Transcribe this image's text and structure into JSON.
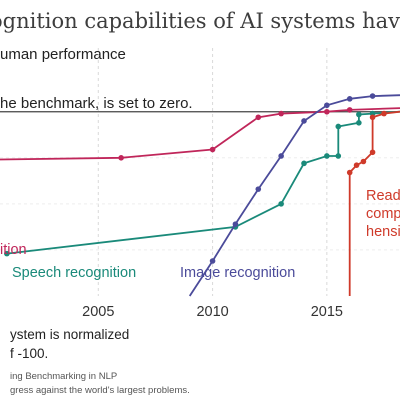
{
  "title": "ognition capabilities of AI systems have i",
  "notes": {
    "human": "uman performance",
    "zero": "he benchmark, is set to zero."
  },
  "footnote": {
    "line1": "ystem is normalized",
    "line2": "f -100."
  },
  "source": {
    "line1": "ing Benchmarking in NLP",
    "line2": "gress against the world's largest problems."
  },
  "colors": {
    "handwriting": "#c0265a",
    "speech": "#1a8a7a",
    "image": "#4b4b9a",
    "reading": "#cf3a2a",
    "human_line": "#444444",
    "grid": "#d9d9d9"
  },
  "chart_data": {
    "type": "line",
    "title": "ognition capabilities of AI systems have i",
    "xlabel": "",
    "ylabel": "",
    "xlim": [
      2000.7,
      2018.2
    ],
    "ylim": [
      -100,
      8
    ],
    "x_ticks": [
      "2005",
      "2010",
      "2015"
    ],
    "x_tick_values": [
      2005,
      2010,
      2015
    ],
    "grid": true,
    "legend": "inline labels",
    "series": [
      {
        "name": "ition",
        "label_partial": true,
        "color_key": "handwriting",
        "points": [
          [
            2000.5,
            -26
          ],
          [
            2006,
            -25
          ],
          [
            2010,
            -20.5
          ],
          [
            2012,
            -3
          ],
          [
            2013,
            -1
          ],
          [
            2015,
            0
          ],
          [
            2016,
            1
          ],
          [
            2018.2,
            2
          ]
        ]
      },
      {
        "name": "Speech recognition",
        "color_key": "speech",
        "points": [
          [
            2001,
            -77
          ],
          [
            2011,
            -62.5
          ],
          [
            2013,
            -50
          ],
          [
            2014,
            -28
          ],
          [
            2015,
            -24
          ],
          [
            2015.5,
            -24
          ],
          [
            2015.5,
            -8
          ],
          [
            2016.4,
            -6
          ],
          [
            2016.4,
            -1.5
          ],
          [
            2017,
            -1
          ],
          [
            2018.2,
            0
          ]
        ]
      },
      {
        "name": "Image recognition",
        "color_key": "image",
        "points": [
          [
            2009,
            -100
          ],
          [
            2010,
            -81
          ],
          [
            2011,
            -61
          ],
          [
            2012,
            -42
          ],
          [
            2013,
            -24
          ],
          [
            2014,
            -5
          ],
          [
            2015,
            3.5
          ],
          [
            2016,
            7
          ],
          [
            2017,
            8.5
          ],
          [
            2018.2,
            9
          ]
        ]
      },
      {
        "name": "Readi comp hensi",
        "label_lines": [
          "Readi",
          "comp",
          "hensi"
        ],
        "label_partial": true,
        "color_key": "reading",
        "points": [
          [
            2016,
            -100
          ],
          [
            2016,
            -33
          ],
          [
            2016.3,
            -29
          ],
          [
            2016.6,
            -27
          ],
          [
            2017,
            -22
          ],
          [
            2017,
            -3
          ],
          [
            2017.5,
            -1
          ],
          [
            2018.2,
            0
          ]
        ]
      }
    ]
  }
}
